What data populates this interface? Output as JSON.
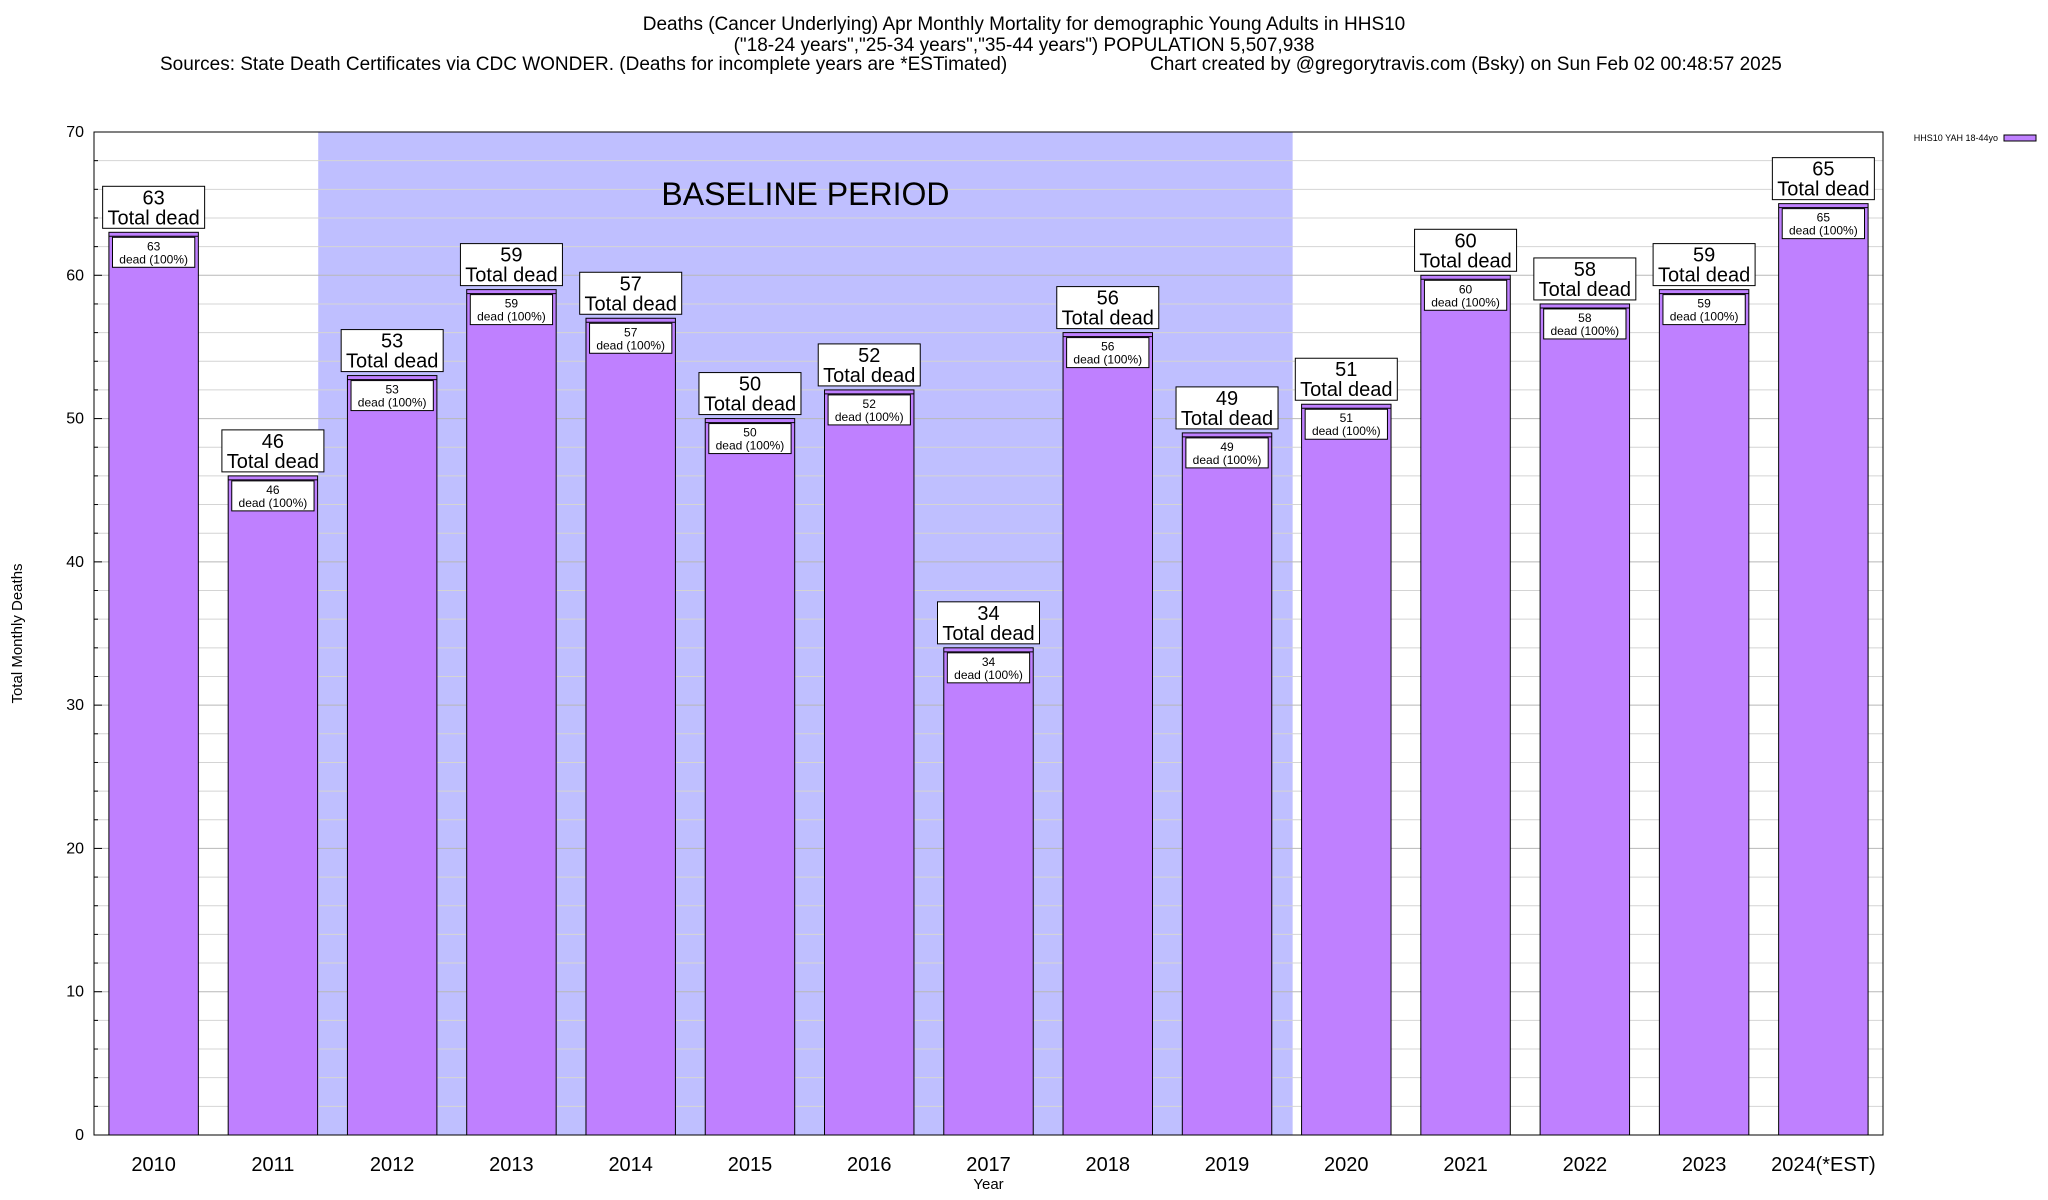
{
  "chart_data": {
    "type": "bar",
    "title_lines": [
      "Deaths (Cancer Underlying) Apr Monthly Mortality for demographic Young Adults in HHS10",
      "(\"18-24 years\",\"25-34 years\",\"35-44 years\") POPULATION 5,507,938"
    ],
    "sources": "Sources: State Death Certificates via CDC WONDER. (Deaths for incomplete years are *ESTimated)",
    "credit": "Chart created by @gregorytravis.com (Bsky) on Sun Feb 02 00:48:57 2025",
    "xlabel": "Year",
    "ylabel": "Total Monthly Deaths",
    "ylim": [
      0,
      70
    ],
    "yticks": [
      0,
      10,
      20,
      30,
      40,
      50,
      60,
      70
    ],
    "grid": true,
    "categories": [
      "2010",
      "2011",
      "2012",
      "2013",
      "2014",
      "2015",
      "2016",
      "2017",
      "2018",
      "2019",
      "2020",
      "2021",
      "2022",
      "2023",
      "2024(*EST)"
    ],
    "series": [
      {
        "name": "HHS10 YAH 18-44yo",
        "color": "#bf80ff",
        "values": [
          63,
          46,
          53,
          59,
          57,
          50,
          52,
          34,
          56,
          49,
          51,
          60,
          58,
          59,
          65
        ]
      }
    ],
    "outer_label_suffix": "Total dead",
    "inner_label_suffix": "dead (100%)",
    "baseline": {
      "label": "BASELINE PERIOD",
      "from": "2012",
      "to": "2019",
      "color": "#bfbfff"
    },
    "legend_position": "top-right"
  }
}
